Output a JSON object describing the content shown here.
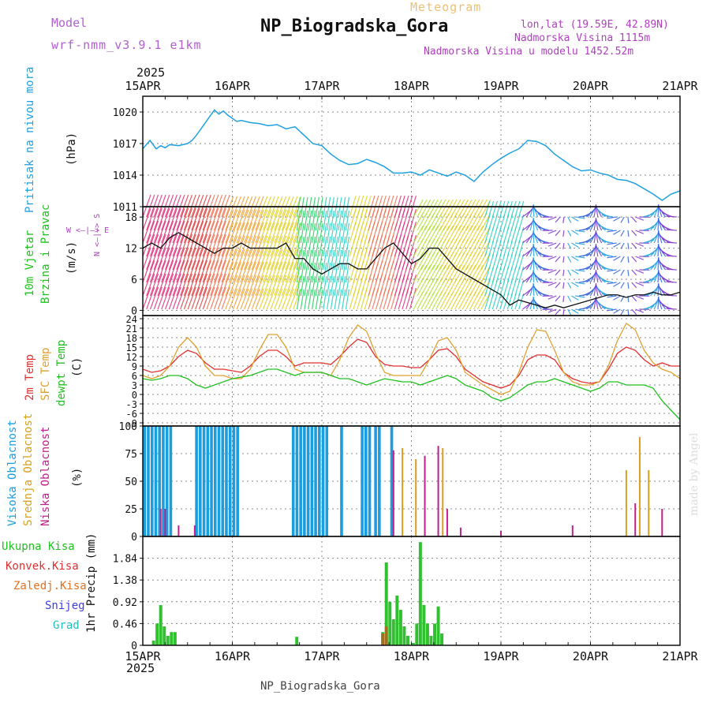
{
  "header": {
    "model_label": "Model",
    "model_name": "wrf-nmm_v3.9.1  e1km",
    "title": "NP_Biogradska_Gora",
    "meteogram_label": "Meteogram",
    "lonlat": "lon,lat (19.59E, 42.89N)",
    "elevation": "Nadmorska Visina 1115m",
    "model_elevation": "Nadmorska Visina u modelu 1452.52m",
    "footer": "NP_Biogradska_Gora",
    "credit": "made by Angel"
  },
  "time_axis": {
    "year": "2025",
    "labels": [
      "15APR",
      "16APR",
      "17APR",
      "18APR",
      "19APR",
      "20APR",
      "21APR"
    ]
  },
  "panels": {
    "pressure": {
      "title": "Pritisak na nivou mora",
      "unit": "(hPa)",
      "ticks": [
        "1011",
        "1014",
        "1017",
        "1020"
      ]
    },
    "wind": {
      "title1": "10m Vjetar",
      "title2": "Brzina i Pravac",
      "unit": "(m/s)",
      "compass": "W <–|–> E",
      "compass_vertical": "N <–|–> S",
      "ticks": [
        "0",
        "6",
        "12",
        "18"
      ]
    },
    "temp": {
      "t2m": "2m Temp",
      "sfc": "SFC Temp",
      "dewpt": "dewpt Temp",
      "unit": "(C)",
      "ticks": [
        "24",
        "21",
        "18",
        "15",
        "12",
        "9",
        "6",
        "3",
        "0",
        "-3",
        "-6",
        "-9"
      ]
    },
    "cloud": {
      "high": "Visoka Oblacnost",
      "mid": "Srednja Oblacnost",
      "low": "Niska Oblacnost",
      "unit": "(%)",
      "ticks": [
        "100",
        "75",
        "50",
        "25",
        "0"
      ]
    },
    "precip": {
      "total": "Ukupna Kisa",
      "conv": "Konvek.Kisa",
      "frozen": "Zaledj.Kisa",
      "snow": "Snijeg",
      "graupel": "Grad",
      "unit": "1hr Precip (mm)",
      "ticks": [
        "1.84",
        "1.38",
        "0.92",
        "0.46",
        "0"
      ]
    }
  },
  "colors": {
    "pressure": "#1fa0e0",
    "t2m": "#e03030",
    "sfc": "#e0a030",
    "dew": "#20c020",
    "high_cloud": "#1a9ee0",
    "mid_cloud": "#d8a020",
    "low_cloud": "#c0208a",
    "precip_total": "#30c030",
    "precip_conv": "#e03030",
    "frozen": "#e07020",
    "snow": "#4040e0",
    "graupel": "#20c0c0"
  },
  "chart_data": [
    {
      "type": "line",
      "name": "sea level pressure",
      "x_unit": "days since 15APR 00",
      "ylim": [
        1011,
        1021.5
      ],
      "x": [
        0,
        0.08,
        0.15,
        0.2,
        0.25,
        0.3,
        0.4,
        0.5,
        0.55,
        0.6,
        0.7,
        0.8,
        0.85,
        0.9,
        0.95,
        1.0,
        1.05,
        1.1,
        1.2,
        1.3,
        1.4,
        1.5,
        1.6,
        1.7,
        1.8,
        1.9,
        2.0,
        2.1,
        2.2,
        2.3,
        2.4,
        2.5,
        2.6,
        2.7,
        2.8,
        2.9,
        3.0,
        3.1,
        3.2,
        3.3,
        3.4,
        3.5,
        3.6,
        3.7,
        3.8,
        3.9,
        4.0,
        4.1,
        4.2,
        4.3,
        4.4,
        4.5,
        4.6,
        4.7,
        4.8,
        4.9,
        5.0,
        5.1,
        5.2,
        5.3,
        5.4,
        5.5,
        5.6,
        5.7,
        5.8,
        5.9,
        6.0
      ],
      "y": [
        1016.5,
        1017.3,
        1016.5,
        1016.8,
        1016.6,
        1016.9,
        1016.8,
        1017.0,
        1017.3,
        1017.8,
        1019.0,
        1020.2,
        1019.8,
        1020.1,
        1019.7,
        1019.4,
        1019.1,
        1019.2,
        1019.0,
        1018.9,
        1018.7,
        1018.8,
        1018.4,
        1018.6,
        1017.8,
        1017.0,
        1016.8,
        1016.0,
        1015.4,
        1015.0,
        1015.1,
        1015.5,
        1015.2,
        1014.8,
        1014.2,
        1014.2,
        1014.3,
        1014.0,
        1014.5,
        1014.2,
        1013.9,
        1014.3,
        1014.0,
        1013.4,
        1014.3,
        1015.0,
        1015.6,
        1016.1,
        1016.5,
        1017.3,
        1017.2,
        1016.8,
        1016.0,
        1015.4,
        1014.8,
        1014.4,
        1014.5,
        1014.2,
        1014.0,
        1013.6,
        1013.5,
        1013.2,
        1012.7,
        1012.2,
        1011.6,
        1012.2,
        1012.5
      ]
    },
    {
      "type": "line",
      "name": "10m wind speed",
      "x_unit": "days since 15APR 00",
      "ylim": [
        -1,
        20
      ],
      "x": [
        0,
        0.1,
        0.2,
        0.3,
        0.4,
        0.5,
        0.6,
        0.7,
        0.8,
        0.9,
        1.0,
        1.1,
        1.2,
        1.3,
        1.4,
        1.5,
        1.6,
        1.7,
        1.8,
        1.9,
        2.0,
        2.1,
        2.2,
        2.3,
        2.4,
        2.5,
        2.6,
        2.7,
        2.8,
        2.9,
        3.0,
        3.1,
        3.2,
        3.3,
        3.4,
        3.5,
        3.6,
        3.7,
        3.8,
        3.9,
        4.0,
        4.1,
        4.2,
        4.3,
        4.4,
        4.5,
        4.6,
        4.7,
        4.8,
        4.9,
        5.0,
        5.1,
        5.2,
        5.3,
        5.4,
        5.5,
        5.6,
        5.7,
        5.8,
        5.9,
        6.0
      ],
      "y": [
        12,
        13,
        12,
        14,
        15,
        14,
        13,
        12,
        11,
        12,
        12,
        13,
        12,
        12,
        12,
        12,
        13,
        10,
        10,
        8,
        7,
        8,
        9,
        9,
        8,
        8,
        10,
        12,
        13,
        11,
        9,
        10,
        12,
        12,
        10,
        8,
        7,
        6,
        5,
        4,
        3,
        1,
        2,
        1.5,
        1,
        0.5,
        1,
        0.5,
        1,
        1.5,
        2,
        2.5,
        3,
        3,
        2.5,
        3,
        3,
        3.5,
        3,
        3,
        3.5
      ]
    },
    {
      "type": "line",
      "name": "temperatures",
      "x_unit": "days since 15APR 00",
      "ylim": [
        -10,
        25
      ],
      "x": [
        0,
        0.1,
        0.2,
        0.3,
        0.4,
        0.5,
        0.6,
        0.7,
        0.8,
        0.9,
        1.0,
        1.1,
        1.2,
        1.3,
        1.4,
        1.5,
        1.6,
        1.7,
        1.8,
        1.9,
        2.0,
        2.1,
        2.2,
        2.3,
        2.4,
        2.5,
        2.6,
        2.7,
        2.8,
        2.9,
        3.0,
        3.1,
        3.2,
        3.3,
        3.4,
        3.5,
        3.6,
        3.7,
        3.8,
        3.9,
        4.0,
        4.1,
        4.2,
        4.3,
        4.4,
        4.5,
        4.6,
        4.7,
        4.8,
        4.9,
        5.0,
        5.1,
        5.2,
        5.3,
        5.4,
        5.5,
        5.6,
        5.7,
        5.8,
        5.9,
        6.0
      ],
      "series": [
        {
          "name": "2m Temp",
          "values": [
            8,
            7,
            7.5,
            9,
            12,
            14,
            13,
            10,
            8,
            8,
            7.5,
            7,
            9,
            12,
            14,
            14,
            12,
            9,
            10,
            10,
            10,
            9.5,
            12,
            15,
            17.5,
            16.5,
            12,
            9.5,
            9,
            9,
            8.5,
            8.5,
            11,
            14,
            14.5,
            12,
            8,
            6,
            4,
            3,
            2,
            3,
            6,
            11,
            12.5,
            12.5,
            11,
            7,
            5,
            4,
            3.5,
            4,
            8,
            13,
            15,
            14,
            11,
            9,
            10,
            9,
            9
          ]
        },
        {
          "name": "SFC Temp",
          "values": [
            6,
            5,
            6,
            9,
            15,
            18,
            15,
            9,
            6,
            6,
            5,
            5,
            8,
            14,
            19,
            19,
            15,
            8,
            7,
            7,
            7,
            6,
            11,
            18,
            22,
            20,
            13,
            7,
            6,
            6,
            6,
            6,
            11,
            17,
            18,
            14,
            7,
            5,
            3,
            1.5,
            0,
            1,
            7,
            15,
            20.5,
            20,
            14,
            7,
            4,
            3,
            3,
            4,
            9,
            17,
            22.5,
            20.5,
            14,
            10,
            8,
            7,
            5
          ]
        },
        {
          "name": "dewpt Temp",
          "values": [
            5,
            4.5,
            5,
            6,
            6,
            5,
            3,
            2,
            3,
            4,
            5,
            5.5,
            6,
            7,
            8,
            8,
            7,
            6,
            7,
            7,
            7,
            6,
            5,
            5,
            4,
            3,
            4,
            5,
            4.5,
            4,
            4,
            3,
            4,
            5,
            6,
            5,
            3,
            2,
            1,
            -1,
            -2,
            -1,
            1,
            3,
            4,
            4,
            5,
            4,
            3,
            2,
            1,
            2,
            4,
            4,
            3,
            3,
            3,
            2,
            -2,
            -5,
            -8
          ]
        }
      ]
    },
    {
      "type": "bar",
      "name": "cloud cover",
      "x_unit": "days since 15APR 00",
      "ylim": [
        0,
        100
      ],
      "series": [
        {
          "name": "Visoka Oblacnost",
          "segments": [
            [
              0.02,
              0.34,
              100
            ],
            [
              0.6,
              1.08,
              100
            ],
            [
              1.68,
              2.08,
              100
            ],
            [
              2.22,
              2.26,
              100
            ],
            [
              2.45,
              2.55,
              100
            ],
            [
              2.6,
              2.68,
              100
            ],
            [
              2.78,
              2.82,
              100
            ]
          ]
        },
        {
          "name": "Srednja Oblacnost",
          "values": [
            [
              2.9,
              80
            ],
            [
              3.05,
              70
            ],
            [
              3.35,
              80
            ],
            [
              5.4,
              60
            ],
            [
              5.55,
              90
            ],
            [
              5.65,
              60
            ]
          ]
        },
        {
          "name": "Niska Oblacnost",
          "values": [
            [
              0.2,
              25
            ],
            [
              0.25,
              25
            ],
            [
              0.4,
              10
            ],
            [
              0.58,
              10
            ],
            [
              2.8,
              78
            ],
            [
              3.15,
              73
            ],
            [
              3.3,
              82
            ],
            [
              3.4,
              25
            ],
            [
              3.55,
              8
            ],
            [
              4.0,
              5
            ],
            [
              4.8,
              10
            ],
            [
              5.5,
              30
            ],
            [
              5.8,
              25
            ]
          ]
        }
      ]
    },
    {
      "type": "bar",
      "name": "1hr precipitation",
      "x_unit": "days since 15APR 00",
      "ylim": [
        0,
        2.3
      ],
      "series": [
        {
          "name": "Ukupna Kisa",
          "values": [
            [
              0.12,
              0.1
            ],
            [
              0.16,
              0.46
            ],
            [
              0.2,
              0.85
            ],
            [
              0.24,
              0.4
            ],
            [
              0.28,
              0.2
            ],
            [
              0.32,
              0.28
            ],
            [
              0.36,
              0.28
            ],
            [
              1.72,
              0.18
            ],
            [
              2.68,
              0.28
            ],
            [
              2.72,
              1.75
            ],
            [
              2.76,
              0.92
            ],
            [
              2.8,
              0.55
            ],
            [
              2.84,
              1.05
            ],
            [
              2.88,
              0.75
            ],
            [
              2.92,
              0.4
            ],
            [
              2.96,
              0.2
            ],
            [
              3.02,
              0.05
            ],
            [
              3.06,
              0.46
            ],
            [
              3.1,
              2.18
            ],
            [
              3.14,
              0.85
            ],
            [
              3.18,
              0.46
            ],
            [
              3.22,
              0.2
            ],
            [
              3.26,
              0.46
            ],
            [
              3.3,
              0.82
            ],
            [
              3.34,
              0.25
            ]
          ]
        },
        {
          "name": "Zaledj.Kisa",
          "values": [
            [
              2.68,
              0.25
            ],
            [
              2.72,
              0.4
            ]
          ]
        }
      ]
    }
  ]
}
